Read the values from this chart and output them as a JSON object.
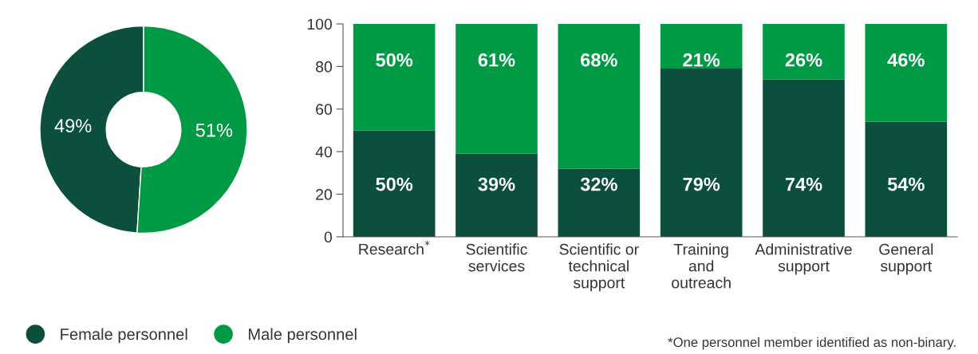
{
  "chart_data": [
    {
      "type": "donut",
      "categories": [
        "Female personnel",
        "Male personnel"
      ],
      "values": [
        49,
        51
      ],
      "colors": [
        "#0b4f3c",
        "#009a44"
      ],
      "value_labels": [
        "49%",
        "51%"
      ],
      "legend": "bottom"
    },
    {
      "type": "bar",
      "stacked": true,
      "categories": [
        "Research$^{*}$",
        "Scientific\nservices",
        "Scientific or\ntechnical\nsupport",
        "Training\nand\noutreach",
        "Administrative\nsupport",
        "General\nsupport"
      ],
      "series": [
        {
          "color": "#0b4f3c",
          "values": [
            50,
            39,
            32,
            79,
            74,
            54
          ],
          "value_labels": [
            "50%",
            "39%",
            "32%",
            "79%",
            "74%",
            "54%"
          ]
        },
        {
          "color": "#009a44",
          "values": [
            50,
            61,
            68,
            21,
            26,
            46
          ],
          "value_labels": [
            "50%",
            "61%",
            "68%",
            "21%",
            "26%",
            "46%"
          ]
        }
      ],
      "ylim": [
        0,
        100
      ],
      "yticks": [
        0,
        20,
        40,
        60,
        80,
        100
      ],
      "grid": false,
      "annotations": [
        "*One personnel member identified as non-binary."
      ]
    }
  ]
}
